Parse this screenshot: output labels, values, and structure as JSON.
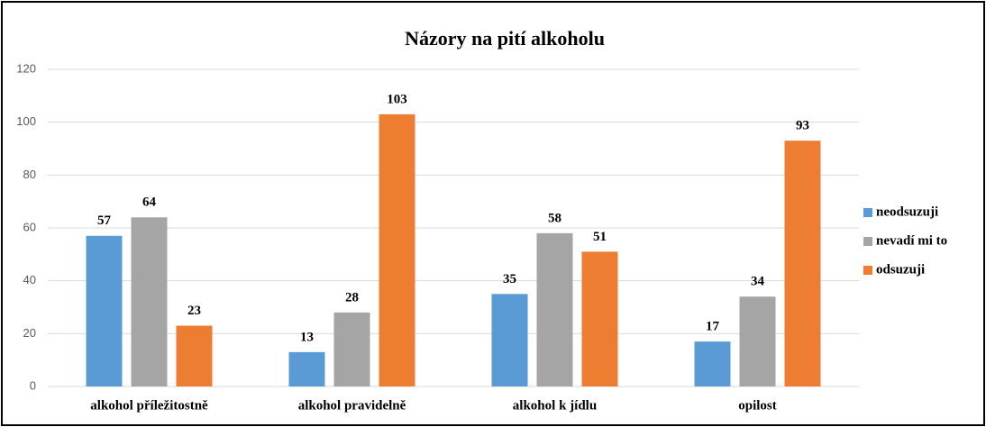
{
  "chart_data": {
    "type": "bar",
    "title": "Názory na pití alkoholu",
    "categories": [
      "alkohol příležitostně",
      "alkohol pravidelně",
      "alkohol k jídlu",
      "opilost"
    ],
    "series": [
      {
        "name": "neodsuzuji",
        "color": "#5b9bd5",
        "values": [
          57,
          13,
          35,
          17
        ]
      },
      {
        "name": "nevadí mi to",
        "color": "#a5a5a5",
        "values": [
          64,
          28,
          58,
          34
        ]
      },
      {
        "name": "odsuzuji",
        "color": "#ed7d31",
        "values": [
          23,
          103,
          51,
          93
        ]
      }
    ],
    "ylim": [
      0,
      120
    ],
    "yticks": [
      0,
      20,
      40,
      60,
      80,
      100,
      120
    ],
    "grid": true,
    "legend": "right"
  }
}
